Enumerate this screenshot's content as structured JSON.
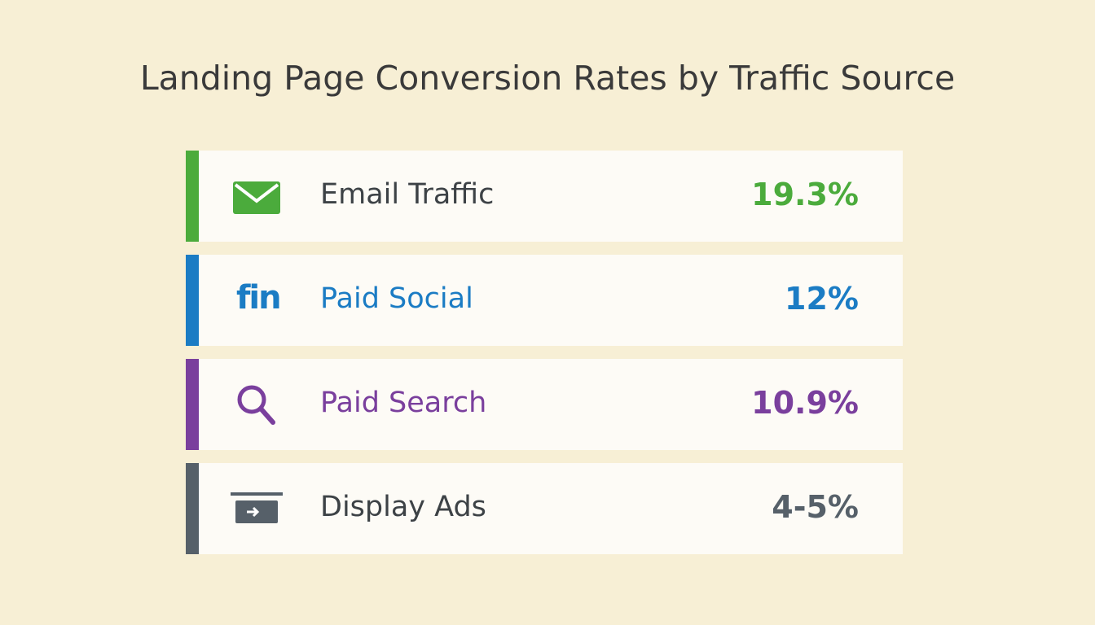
{
  "title": "Landing Page Conversion Rates by Traffic Source",
  "items": [
    {
      "label": "Email Traffic",
      "value": "19.3%",
      "color": "#4bab3c",
      "label_color": "#3d4246"
    },
    {
      "label": "Paid Social",
      "value": "12%",
      "color": "#1b7cc4",
      "label_color": "#1b7cc4",
      "icon_text": "fin"
    },
    {
      "label": "Paid Search",
      "value": "10.9%",
      "color": "#7a3f9d",
      "label_color": "#7a3f9d"
    },
    {
      "label": "Display Ads",
      "value": "4-5%",
      "color": "#566069",
      "label_color": "#3d4246"
    }
  ]
}
